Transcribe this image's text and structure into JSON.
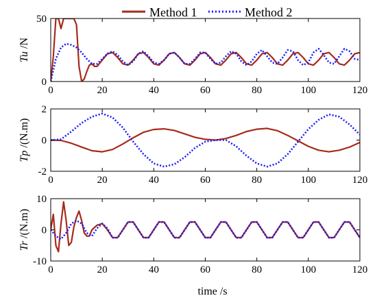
{
  "chart_data": [
    {
      "type": "line",
      "ylabel_var": "Tu",
      "ylabel_unit": " /N",
      "xlim": [
        0,
        120
      ],
      "ylim": [
        0,
        50
      ],
      "xticks": [
        "0",
        "20",
        "40",
        "60",
        "80",
        "100",
        "120"
      ],
      "yticks": [
        "0",
        "50"
      ],
      "ytick_values": [
        0,
        50
      ],
      "series": [
        {
          "name": "Method 1",
          "color": "#a52a1a",
          "dash": "solid",
          "x": [
            0,
            1,
            2,
            3,
            4,
            5,
            6,
            7,
            8,
            9,
            10,
            11,
            12,
            13,
            14,
            15,
            16,
            17,
            18,
            20,
            22,
            24,
            26,
            28,
            30,
            32,
            34,
            36,
            38,
            40,
            42,
            44,
            46,
            48,
            50,
            52,
            54,
            56,
            58,
            60,
            62,
            64,
            66,
            68,
            70,
            72,
            74,
            76,
            78,
            80,
            82,
            84,
            86,
            88,
            90,
            92,
            94,
            96,
            98,
            100,
            102,
            104,
            106,
            108,
            110,
            112,
            114,
            116,
            118,
            120
          ],
          "y": [
            0,
            20,
            50,
            50,
            42,
            50,
            50,
            50,
            50,
            50,
            45,
            12,
            0,
            2,
            8,
            13,
            14,
            12,
            12,
            17,
            22,
            23,
            19,
            14,
            13,
            17,
            22,
            23,
            19,
            14,
            13,
            17,
            22,
            23,
            19,
            14,
            13,
            17,
            22,
            23,
            19,
            14,
            13,
            17,
            22,
            23,
            19,
            14,
            13,
            17,
            22,
            23,
            19,
            14,
            13,
            17,
            22,
            23,
            19,
            14,
            13,
            17,
            22,
            23,
            19,
            14,
            13,
            17,
            22,
            23
          ]
        },
        {
          "name": "Method 2",
          "color": "#1a1aff",
          "dash": "dotted",
          "x": [
            0,
            2,
            4,
            6,
            8,
            10,
            12,
            14,
            16,
            18,
            20,
            22,
            24,
            26,
            28,
            30,
            32,
            34,
            36,
            38,
            40,
            42,
            44,
            46,
            48,
            50,
            52,
            54,
            56,
            58,
            60,
            62,
            64,
            66,
            68,
            70,
            72,
            74,
            76,
            78,
            80,
            82,
            84,
            86,
            88,
            90,
            92,
            94,
            96,
            98,
            100,
            102,
            104,
            106,
            108,
            110,
            112,
            114,
            116,
            118,
            120
          ],
          "y": [
            0,
            18,
            27,
            30,
            29,
            27,
            23,
            18,
            14,
            14,
            18,
            22,
            24,
            21,
            16,
            13,
            16,
            22,
            24,
            20,
            15,
            14,
            17,
            22,
            23,
            19,
            14,
            14,
            18,
            23,
            23,
            18,
            14,
            15,
            20,
            24,
            22,
            16,
            13,
            16,
            22,
            25,
            20,
            15,
            14,
            19,
            25,
            24,
            17,
            13,
            15,
            23,
            26,
            21,
            15,
            14,
            20,
            26,
            24,
            18,
            17
          ]
        }
      ]
    },
    {
      "type": "line",
      "ylabel_var": "Tp",
      "ylabel_unit": " /(N.m)",
      "xlim": [
        0,
        120
      ],
      "ylim": [
        -2,
        2
      ],
      "xticks": [
        "0",
        "20",
        "40",
        "60",
        "80",
        "100",
        "120"
      ],
      "yticks": [
        "-2",
        "0",
        "2"
      ],
      "ytick_values": [
        -2,
        0,
        2
      ],
      "series": [
        {
          "name": "Method 1",
          "color": "#a52a1a",
          "dash": "solid",
          "x": [
            0,
            4,
            8,
            12,
            16,
            20,
            24,
            28,
            32,
            36,
            40,
            44,
            48,
            52,
            56,
            60,
            64,
            68,
            72,
            76,
            80,
            84,
            88,
            92,
            96,
            100,
            104,
            108,
            112,
            116,
            120
          ],
          "y": [
            0,
            -0.02,
            -0.2,
            -0.45,
            -0.68,
            -0.75,
            -0.6,
            -0.25,
            0.15,
            0.5,
            0.68,
            0.72,
            0.62,
            0.4,
            0.18,
            0.05,
            0.0,
            0.1,
            0.3,
            0.55,
            0.7,
            0.75,
            0.6,
            0.3,
            -0.05,
            -0.4,
            -0.65,
            -0.75,
            -0.65,
            -0.45,
            -0.15
          ]
        },
        {
          "name": "Method 2",
          "color": "#1a1aff",
          "dash": "dotted",
          "x": [
            0,
            4,
            8,
            12,
            16,
            20,
            24,
            28,
            32,
            36,
            40,
            44,
            48,
            52,
            56,
            60,
            64,
            68,
            72,
            76,
            80,
            84,
            88,
            92,
            96,
            100,
            104,
            108,
            112,
            116,
            120
          ],
          "y": [
            0,
            0.05,
            0.55,
            1.1,
            1.5,
            1.7,
            1.45,
            0.8,
            -0.1,
            -0.9,
            -1.5,
            -1.7,
            -1.55,
            -1.1,
            -0.5,
            -0.1,
            0.0,
            0.0,
            -0.4,
            -1.0,
            -1.5,
            -1.7,
            -1.5,
            -0.9,
            -0.1,
            0.7,
            1.3,
            1.65,
            1.5,
            1.0,
            0.35
          ]
        }
      ]
    },
    {
      "type": "line",
      "ylabel_var": "Tr",
      "ylabel_unit": " /(N.m)",
      "xlim": [
        0,
        120
      ],
      "ylim": [
        -10,
        10
      ],
      "xticks": [
        "0",
        "20",
        "40",
        "60",
        "80",
        "100",
        "120"
      ],
      "yticks": [
        "-10",
        "0",
        "10"
      ],
      "ytick_values": [
        -10,
        0,
        10
      ],
      "xlabel": "time /s",
      "series": [
        {
          "name": "Method 1",
          "color": "#a52a1a",
          "dash": "solid",
          "x": [
            0,
            1,
            2,
            3,
            4,
            5,
            6,
            7,
            8,
            9,
            10,
            11,
            12,
            13,
            14,
            15,
            16,
            18,
            20,
            22,
            24,
            26,
            28,
            30,
            32,
            34,
            36,
            38,
            40,
            42,
            44,
            46,
            48,
            50,
            52,
            54,
            56,
            58,
            60,
            62,
            64,
            66,
            68,
            70,
            72,
            74,
            76,
            78,
            80,
            82,
            84,
            86,
            88,
            90,
            92,
            94,
            96,
            98,
            100,
            102,
            104,
            106,
            108,
            110,
            112,
            114,
            116,
            118,
            120
          ],
          "y": [
            0,
            5,
            -5,
            -7,
            2,
            9,
            3,
            -5,
            -4,
            1,
            4,
            6,
            3,
            -1,
            -2,
            -2,
            0,
            1.5,
            2,
            0,
            -2.5,
            -2.5,
            0,
            2.5,
            2.5,
            0,
            -2.5,
            -2.5,
            0,
            2.5,
            2.5,
            0,
            -2.5,
            -2.5,
            0,
            2.5,
            2.5,
            0,
            -2.5,
            -2.5,
            0,
            2.5,
            2.5,
            0,
            -2.5,
            -2.5,
            0,
            2.5,
            2.5,
            0,
            -2.5,
            -2.5,
            0,
            2.5,
            2.5,
            0,
            -2.5,
            -2.5,
            0,
            2.5,
            2.5,
            0,
            -2.5,
            -2.5,
            0,
            2.5,
            2.5,
            0,
            -2.5
          ]
        },
        {
          "name": "Method 2",
          "color": "#1a1aff",
          "dash": "dotted",
          "x": [
            0,
            2,
            4,
            6,
            8,
            10,
            12,
            14,
            16,
            18,
            20,
            22,
            24,
            26,
            28,
            30,
            32,
            34,
            36,
            38,
            40,
            42,
            44,
            46,
            48,
            50,
            52,
            54,
            56,
            58,
            60,
            62,
            64,
            66,
            68,
            70,
            72,
            74,
            76,
            78,
            80,
            82,
            84,
            86,
            88,
            90,
            92,
            94,
            96,
            98,
            100,
            102,
            104,
            106,
            108,
            110,
            112,
            114,
            116,
            118,
            120
          ],
          "y": [
            0,
            -2,
            -3,
            -1,
            2,
            3,
            2,
            -1,
            -2,
            0.5,
            2,
            0.5,
            -2.5,
            -2.5,
            0,
            2.5,
            2.5,
            0,
            -2.5,
            -2.5,
            0,
            2.5,
            2.5,
            0,
            -2.5,
            -2.5,
            0,
            2.5,
            2.5,
            0,
            -2.5,
            -2.5,
            0,
            2.5,
            2.5,
            0,
            -2.5,
            -2.5,
            0,
            2.5,
            2.5,
            0,
            -2.5,
            -2.5,
            0,
            2.5,
            2.5,
            0,
            -2.5,
            -2.5,
            0,
            2.5,
            2.5,
            0,
            -2.5,
            -2.5,
            0,
            2.5,
            2.5,
            0,
            -2.5
          ]
        }
      ]
    }
  ],
  "legend": {
    "items": [
      {
        "name": "Method 1",
        "color": "#a52a1a",
        "dash": "solid"
      },
      {
        "name": "Method 2",
        "color": "#1a1aff",
        "dash": "dotted"
      }
    ]
  }
}
